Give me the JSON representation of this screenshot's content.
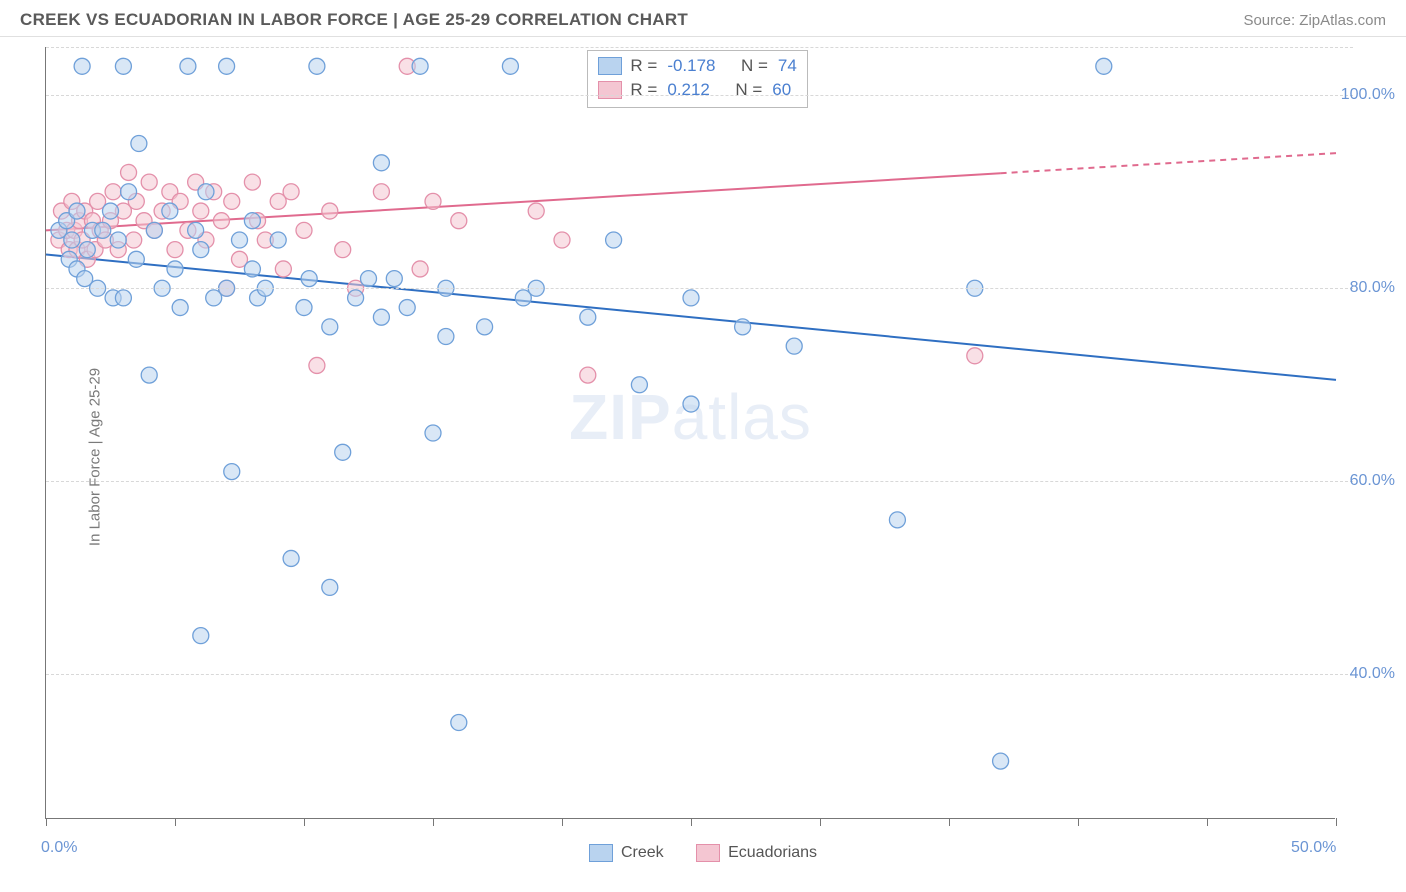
{
  "title": "CREEK VS ECUADORIAN IN LABOR FORCE | AGE 25-29 CORRELATION CHART",
  "source": "Source: ZipAtlas.com",
  "ylabel": "In Labor Force | Age 25-29",
  "watermark_a": "ZIP",
  "watermark_b": "atlas",
  "chart": {
    "type": "scatter",
    "xlim": [
      0,
      50
    ],
    "ylim": [
      25,
      105
    ],
    "background_color": "#ffffff",
    "grid_color": "#d8d8d8",
    "axis_color": "#777777",
    "marker_radius": 8,
    "marker_opacity": 0.55,
    "xticks_major": [
      0,
      50
    ],
    "xticks_minor": [
      5,
      10,
      15,
      20,
      25,
      30,
      35,
      40,
      45
    ],
    "xtick_labels": {
      "0": "0.0%",
      "50": "50.0%"
    },
    "yticks": [
      40,
      60,
      80,
      100
    ],
    "ytick_labels": {
      "40": "40.0%",
      "60": "60.0%",
      "80": "80.0%",
      "100": "100.0%"
    },
    "axis_label_color": "#6b95d4",
    "axis_label_fontsize": 16
  },
  "series": {
    "creek": {
      "label": "Creek",
      "fill": "#b9d3ef",
      "stroke": "#6fa0d9",
      "line_color": "#2f6fc2",
      "line_width": 2,
      "R": "-0.178",
      "N": "74",
      "regression": {
        "x1": 0,
        "y1": 83.5,
        "x2": 50,
        "y2": 70.5,
        "dash_after_x": 50
      },
      "points": [
        [
          0.5,
          86
        ],
        [
          0.8,
          87
        ],
        [
          0.9,
          83
        ],
        [
          1.0,
          85
        ],
        [
          1.2,
          82
        ],
        [
          1.2,
          88
        ],
        [
          1.4,
          103
        ],
        [
          1.5,
          81
        ],
        [
          1.6,
          84
        ],
        [
          1.8,
          86
        ],
        [
          2.0,
          80
        ],
        [
          2.2,
          86
        ],
        [
          2.5,
          88
        ],
        [
          2.6,
          79
        ],
        [
          2.8,
          85
        ],
        [
          3.0,
          103
        ],
        [
          3.0,
          79
        ],
        [
          3.2,
          90
        ],
        [
          3.5,
          83
        ],
        [
          3.6,
          95
        ],
        [
          4.0,
          71
        ],
        [
          4.2,
          86
        ],
        [
          4.5,
          80
        ],
        [
          4.8,
          88
        ],
        [
          5.0,
          82
        ],
        [
          5.2,
          78
        ],
        [
          5.5,
          103
        ],
        [
          5.8,
          86
        ],
        [
          6.0,
          84
        ],
        [
          6.0,
          44
        ],
        [
          6.2,
          90
        ],
        [
          6.5,
          79
        ],
        [
          7.0,
          103
        ],
        [
          7.0,
          80
        ],
        [
          7.2,
          61
        ],
        [
          7.5,
          85
        ],
        [
          8.0,
          82
        ],
        [
          8.0,
          87
        ],
        [
          8.2,
          79
        ],
        [
          8.5,
          80
        ],
        [
          9.0,
          85
        ],
        [
          9.5,
          52
        ],
        [
          10.0,
          78
        ],
        [
          10.2,
          81
        ],
        [
          10.5,
          103
        ],
        [
          11.0,
          49
        ],
        [
          11.0,
          76
        ],
        [
          11.5,
          63
        ],
        [
          12.0,
          79
        ],
        [
          12.5,
          81
        ],
        [
          13.0,
          93
        ],
        [
          13.0,
          77
        ],
        [
          13.5,
          81
        ],
        [
          14.0,
          78
        ],
        [
          14.5,
          103
        ],
        [
          15.0,
          65
        ],
        [
          15.5,
          75
        ],
        [
          15.5,
          80
        ],
        [
          16.0,
          35
        ],
        [
          17.0,
          76
        ],
        [
          18.0,
          103
        ],
        [
          18.5,
          79
        ],
        [
          19.0,
          80
        ],
        [
          21.0,
          77
        ],
        [
          22.0,
          85
        ],
        [
          23.0,
          70
        ],
        [
          25.0,
          79
        ],
        [
          25.0,
          68
        ],
        [
          27.0,
          76
        ],
        [
          29.0,
          74
        ],
        [
          33.0,
          56
        ],
        [
          36.0,
          80
        ],
        [
          37.0,
          31
        ],
        [
          41.0,
          103
        ]
      ]
    },
    "ecuadorians": {
      "label": "Ecuadorians",
      "fill": "#f4c6d2",
      "stroke": "#e490aa",
      "line_color": "#e06a8e",
      "line_width": 2,
      "R": "0.212",
      "N": "60",
      "regression": {
        "x1": 0,
        "y1": 86,
        "x2": 50,
        "y2": 94,
        "dash_after_x": 37
      },
      "points": [
        [
          0.5,
          85
        ],
        [
          0.6,
          88
        ],
        [
          0.8,
          86
        ],
        [
          0.9,
          84
        ],
        [
          1.0,
          89
        ],
        [
          1.1,
          86
        ],
        [
          1.2,
          84
        ],
        [
          1.3,
          87
        ],
        [
          1.4,
          85
        ],
        [
          1.5,
          88
        ],
        [
          1.6,
          83
        ],
        [
          1.8,
          87
        ],
        [
          1.9,
          84
        ],
        [
          2.0,
          89
        ],
        [
          2.1,
          86
        ],
        [
          2.3,
          85
        ],
        [
          2.5,
          87
        ],
        [
          2.6,
          90
        ],
        [
          2.8,
          84
        ],
        [
          3.0,
          88
        ],
        [
          3.2,
          92
        ],
        [
          3.4,
          85
        ],
        [
          3.5,
          89
        ],
        [
          3.8,
          87
        ],
        [
          4.0,
          91
        ],
        [
          4.2,
          86
        ],
        [
          4.5,
          88
        ],
        [
          4.8,
          90
        ],
        [
          5.0,
          84
        ],
        [
          5.2,
          89
        ],
        [
          5.5,
          86
        ],
        [
          5.8,
          91
        ],
        [
          6.0,
          88
        ],
        [
          6.2,
          85
        ],
        [
          6.5,
          90
        ],
        [
          6.8,
          87
        ],
        [
          7.0,
          80
        ],
        [
          7.2,
          89
        ],
        [
          7.5,
          83
        ],
        [
          8.0,
          91
        ],
        [
          8.2,
          87
        ],
        [
          8.5,
          85
        ],
        [
          9.0,
          89
        ],
        [
          9.2,
          82
        ],
        [
          9.5,
          90
        ],
        [
          10.0,
          86
        ],
        [
          10.5,
          72
        ],
        [
          11.0,
          88
        ],
        [
          11.5,
          84
        ],
        [
          12.0,
          80
        ],
        [
          13.0,
          90
        ],
        [
          14.0,
          103
        ],
        [
          14.5,
          82
        ],
        [
          15.0,
          89
        ],
        [
          16.0,
          87
        ],
        [
          19.0,
          88
        ],
        [
          20.0,
          85
        ],
        [
          21.0,
          71
        ],
        [
          23.0,
          103
        ],
        [
          36.0,
          73
        ]
      ]
    }
  },
  "legend": {
    "r_label": "R =",
    "n_label": "N ="
  }
}
